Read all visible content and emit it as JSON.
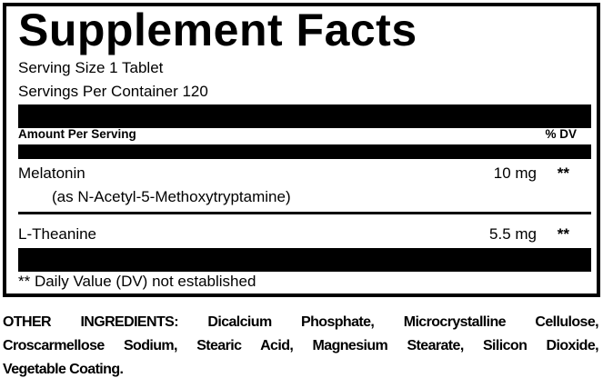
{
  "facts": {
    "title": "Supplement Facts",
    "serving_size": "Serving Size 1 Tablet",
    "servings_per_container": "Servings Per Container 120",
    "amount_header": "Amount Per Serving",
    "dv_header": "% DV",
    "nutrients": [
      {
        "name": "Melatonin",
        "source": "(as N-Acetyl-5-Methoxytryptamine)",
        "amount": "10 mg",
        "dv": "**"
      },
      {
        "name": "L-Theanine",
        "amount": "5.5 mg",
        "dv": "**"
      }
    ],
    "footnote": "** Daily Value (DV) not established"
  },
  "other_ingredients": {
    "lines": [
      "OTHER INGREDIENTS: Dicalcium Phosphate, Microcrystalline Cellulose,",
      "Croscarmellose Sodium, Stearic Acid, Magnesium Stearate, Silicon Dioxide,",
      "Vegetable Coating."
    ]
  }
}
